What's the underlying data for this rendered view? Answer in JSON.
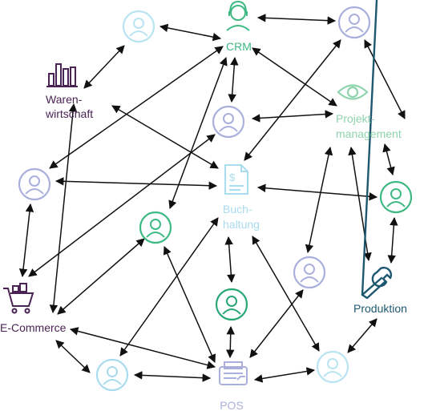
{
  "colors": {
    "crm": "#3fb983",
    "warenwirtschaft": "#4a2354",
    "projekt": "#8fd3ad",
    "buchhaltung": "#a9dcef",
    "produktion": "#1e5870",
    "ecommerce": "#4a2354",
    "pos": "#aab0dc",
    "lavender": "#aab0dc",
    "skyblue": "#b9e4f1",
    "green": "#3fb983",
    "green_dark": "#2aa776",
    "arrow": "#111111"
  },
  "labels": {
    "crm": "CRM",
    "warenwirtschaft_1": "Waren-",
    "warenwirtschaft_2": "wirtschaft",
    "projekt_1": "Projekt-",
    "projekt_2": "management",
    "buchhaltung_1": "Buch-",
    "buchhaltung_2": "haltung",
    "produktion": "Produktion",
    "ecommerce": "E-Commerce",
    "pos": "POS"
  },
  "icons": {
    "crm": "headset-person-icon",
    "warenwirtschaft": "bar-chart-icon",
    "projekt": "eye-icon",
    "buchhaltung": "document-dollar-icon",
    "produktion": "wrench-icon",
    "ecommerce": "shopping-cart-icon",
    "pos": "cash-register-icon",
    "users": "user-icon"
  }
}
